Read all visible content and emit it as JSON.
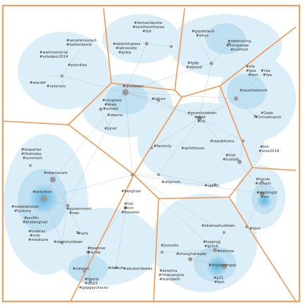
{
  "colors": {
    "border": "#f0a060",
    "region_edge": "#ee9a55",
    "blob_light": "#dceef8",
    "blob_mid": "#b9ddf0",
    "blob_dark": "#8ec8e6",
    "node": "#9a9a9a",
    "edge": "#9aa4aa"
  },
  "clusters": [
    {
      "name": "cluster-top-left",
      "labels": [
        "#senatemustact",
        "#twitterbomb",
        "#wwiimemorial",
        "#votedem2014",
        "#priorities",
        "#wecdef",
        "#veterans"
      ]
    },
    {
      "name": "cluster-top-center",
      "labels": [
        "#demandavote",
        "#lockthemtheree",
        "#tlot",
        "#dearcongress",
        "#latinovote",
        "#greta"
      ]
    },
    {
      "name": "cluster-top-right",
      "labels": [
        "#gopdefault",
        "#whys",
        "#debtceiling",
        "#livingwage",
        "#outfront",
        "#tgdp",
        "#defund"
      ]
    },
    {
      "name": "cluster-center",
      "labels": [
        "#shutdown",
        "#congress",
        "#kews",
        "#ocnwrt",
        "#obama",
        "#latism",
        "#pjnet"
      ]
    },
    {
      "name": "cluster-right-top",
      "labels": [
        "#ofa",
        "#gea",
        "#nsa",
        "#fem",
        "#tea",
        "#savethetwerk",
        "#2ada",
        "#1mvotmarch"
      ]
    },
    {
      "name": "cluster-middle",
      "labels": [
        "#govtshutdown",
        "#dcbt",
        "#ntl",
        "#republicans",
        "#tcot",
        "#lcretalk",
        "#tlm",
        "#vote2014",
        "#factonly",
        "#spirithouse",
        "#stoprush",
        "#uppsic"
      ]
    },
    {
      "name": "cluster-left",
      "labels": [
        "#teaparter",
        "#tlnetoday",
        "#sunmiom",
        "#obamacare",
        "#extortion",
        "#makedelistan",
        "#tyranny",
        "#government",
        "#ows",
        "#profits",
        "#brokenghad",
        "#tederaz",
        "#mtb",
        "#medicare",
        "#dentshutdown",
        "#vets"
      ]
    },
    {
      "name": "cluster-bottom-center",
      "labels": [
        "#benghazi",
        "#tlot",
        "#cnn",
        "#foxnews",
        "#boehner",
        "#strike",
        "#cleaner",
        "#default",
        "#abcworldnews",
        "#tlterib",
        "#vcst3",
        "#gopgaychecks"
      ]
    },
    {
      "name": "cluster-bottom-right",
      "labels": [
        "#walkmgdr",
        "#scr",
        "#house",
        "#stream",
        "#obamashutdown",
        "#dem",
        "#justvote",
        "#topprog",
        "#gchck",
        "#enoughalready",
        "#edshow",
        "#shutdowngop",
        "#p21",
        "#lpot",
        "#america",
        "#timecangive",
        "#standwith"
      ]
    }
  ]
}
